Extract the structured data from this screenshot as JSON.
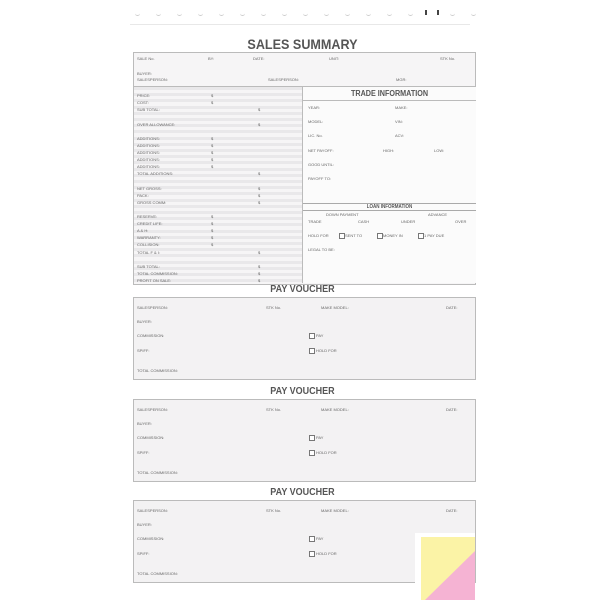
{
  "sales_summary": {
    "title": "SALES SUMMARY",
    "header": {
      "sale_no": "SALE No.",
      "by": "BY:",
      "date": "DATE:",
      "unit": "UNIT:",
      "stk_no": "STK No.",
      "buyer": "BUYER:",
      "salesperson1": "SALESPERSON:",
      "salesperson2": "SALESPERSON:",
      "mgr": "MGR:"
    },
    "rows": [
      {
        "label": "PRICE:",
        "col": 1
      },
      {
        "label": "COST:",
        "col": 1
      },
      {
        "label": "SUB TOTAL:",
        "col": 2
      },
      {
        "label": "OVER ALLOWANCE:",
        "col": 2
      },
      {
        "label": "ADDITIONS:",
        "col": 1
      },
      {
        "label": "ADDITIONS:",
        "col": 1
      },
      {
        "label": "ADDITIONS:",
        "col": 1
      },
      {
        "label": "ADDITIONS:",
        "col": 1
      },
      {
        "label": "ADDITIONS:",
        "col": 1
      },
      {
        "label": "TOTAL ADDITIONS:",
        "col": 2
      },
      {
        "label": "NET GROSS:",
        "col": 2
      },
      {
        "label": "PACK:",
        "col": 2
      },
      {
        "label": "GROSS COMM:",
        "col": 2
      },
      {
        "label": "RESERVE:",
        "col": 1
      },
      {
        "label": "CREDIT LIFE:",
        "col": 1
      },
      {
        "label": "A & H:",
        "col": 1
      },
      {
        "label": "WARRANTY:",
        "col": 1
      },
      {
        "label": "COLLISION:",
        "col": 1
      },
      {
        "label": "TOTAL F & I:",
        "col": 2
      },
      {
        "label": "SUB TOTAL:",
        "col": 2
      },
      {
        "label": "TOTAL COMMISSION:",
        "col": 2
      },
      {
        "label": "PROFIT ON SALE:",
        "col": 2
      }
    ],
    "currency_symbol": "$"
  },
  "trade_information": {
    "title": "TRADE INFORMATION",
    "year": "YEAR:",
    "make": "MAKE:",
    "model": "MODEL:",
    "vin": "VIN:",
    "lic_no": "LIC. No.",
    "acv": "ACV:",
    "net_payoff": "NET PAYOFF:",
    "high": "HIGH:",
    "low": "LOW:",
    "good_until": "GOOD UNTIL:",
    "payoff_to": "PAYOFF TO:"
  },
  "loan_information": {
    "title": "LOAN INFORMATION",
    "down_payment": "DOWN PAYMENT",
    "advance": "ADVANCE",
    "trade": "TRADE",
    "cash": "CASH",
    "under": "UNDER",
    "over": "OVER",
    "hold_for": "HOLD FOR",
    "sent_to": "SENT TO",
    "money_in": "MONEY IN",
    "first_pay_due": "1 PAY DUE",
    "legal_to_be": "LEGAL TO BE:"
  },
  "pay_vouchers": [
    {
      "title": "PAY VOUCHER",
      "salesperson": "SALESPERSON:",
      "stk_no": "STK No.",
      "make_model": "MAKE MODEL:",
      "date": "DATE:",
      "buyer": "BUYER:",
      "commission": "COMMISSION:",
      "pay": "PAY",
      "spiff": "SPIFF:",
      "hold_for": "HOLD FOR",
      "total_commission": "TOTAL COMMISSION:"
    },
    {
      "title": "PAY VOUCHER",
      "salesperson": "SALESPERSON:",
      "stk_no": "STK No.",
      "make_model": "MAKE MODEL:",
      "date": "DATE:",
      "buyer": "BUYER:",
      "commission": "COMMISSION:",
      "pay": "PAY",
      "spiff": "SPIFF:",
      "hold_for": "HOLD FOR",
      "total_commission": "TOTAL COMMISSION:"
    },
    {
      "title": "PAY VOUCHER",
      "salesperson": "SALESPERSON:",
      "stk_no": "STK No.",
      "make_model": "MAKE MODEL:",
      "date": "DATE:",
      "buyer": "BUYER:",
      "commission": "COMMISSION:",
      "pay": "PAY",
      "spiff": "SPIFF:",
      "hold_for": "HOLD FOR",
      "total_commission": "TOTAL COMMISSION:"
    }
  ],
  "colors": {
    "copy_yellow": "#fbf3a6",
    "copy_pink": "#f5b3d3",
    "form_bg": "#f3f2f3",
    "stripe": "#e9e8ea"
  }
}
